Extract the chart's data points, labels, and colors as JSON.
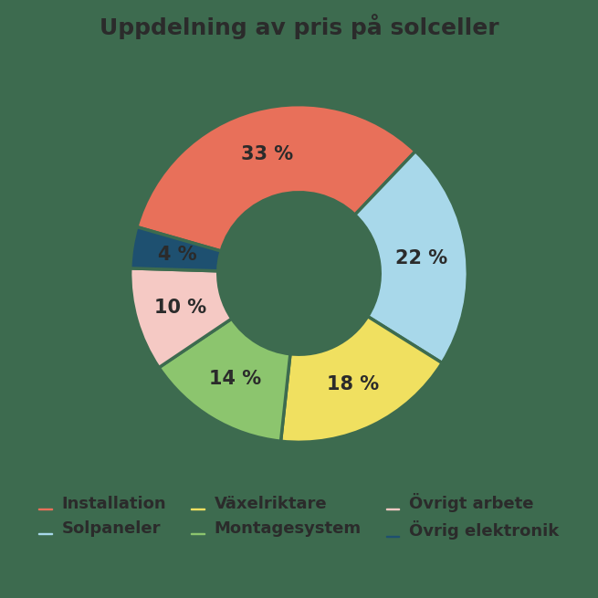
{
  "title": "Uppdelning av pris på solceller",
  "labels": [
    "Installation",
    "Solpaneler",
    "Växelriktare",
    "Montagesystem",
    "Övrigt arbete",
    "Övrig elektronik"
  ],
  "values": [
    33,
    22,
    18,
    14,
    10,
    4
  ],
  "colors": [
    "#E8705A",
    "#A8D8EA",
    "#F0E060",
    "#8CC56E",
    "#F5C9C4",
    "#1E5070"
  ],
  "text_color": "#2B2B2B",
  "background_color": "#3D6B4F",
  "donut_hole_color": "#3D6B4F",
  "title_fontsize": 18,
  "label_fontsize": 15,
  "legend_fontsize": 13,
  "wedge_linewidth": 2.5,
  "wedge_edgecolor": "#3D6B4F",
  "startangle": 57,
  "legend_order": [
    0,
    1,
    2,
    3,
    4,
    5
  ]
}
